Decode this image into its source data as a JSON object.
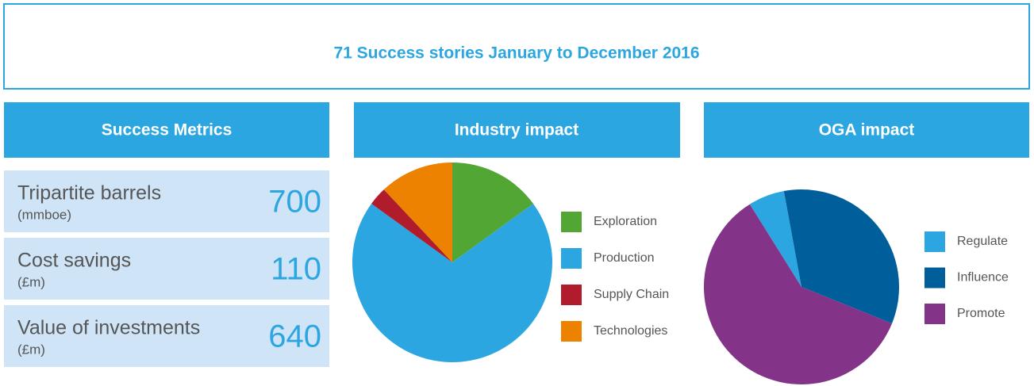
{
  "title": "71 Success stories January to December 2016",
  "metrics": {
    "heading": "Success Metrics",
    "items": [
      {
        "label": "Tripartite barrels",
        "unit": "(mmboe)",
        "value": "700"
      },
      {
        "label": "Cost savings",
        "unit": "(£m)",
        "value": "110"
      },
      {
        "label": "Value of investments",
        "unit": "(£m)",
        "value": "640"
      }
    ]
  },
  "chart_data": [
    {
      "type": "pie",
      "title": "Industry impact",
      "categories": [
        "Exploration",
        "Production",
        "Supply Chain",
        "Technologies"
      ],
      "values": [
        15,
        70,
        3,
        12
      ],
      "colors": [
        "#52a633",
        "#2ca6e0",
        "#b01c2b",
        "#ec8200"
      ]
    },
    {
      "type": "pie",
      "title": "OGA impact",
      "categories": [
        "Regulate",
        "Influence",
        "Promote"
      ],
      "values": [
        6,
        34,
        60
      ],
      "colors": [
        "#2ca6e0",
        "#005f9a",
        "#833388"
      ]
    }
  ]
}
